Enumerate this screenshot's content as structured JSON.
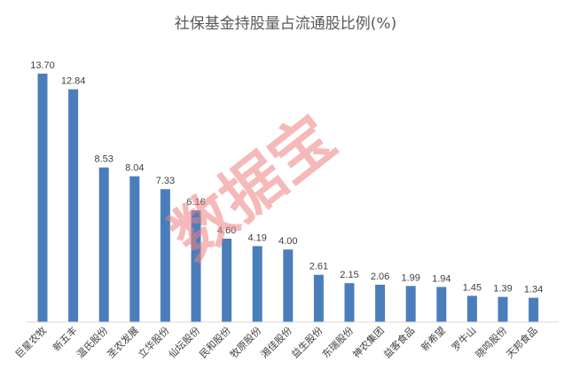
{
  "chart_data": {
    "type": "bar",
    "title": "社保基金持股量占流通股比例(%)",
    "categories": [
      "巨星农牧",
      "新五丰",
      "温氏股份",
      "圣农发展",
      "立华股份",
      "仙坛股份",
      "民和股份",
      "牧原股份",
      "湘佳股份",
      "益生股份",
      "东瑞股份",
      "神农集团",
      "益客食品",
      "新希望",
      "罗牛山",
      "晓鸣股份",
      "天邦食品"
    ],
    "values": [
      13.7,
      12.84,
      8.53,
      8.04,
      7.33,
      6.16,
      4.6,
      4.19,
      4.0,
      2.61,
      2.15,
      2.06,
      1.99,
      1.94,
      1.45,
      1.39,
      1.34
    ],
    "value_labels": [
      "13.70",
      "12.84",
      "8.53",
      "8.04",
      "7.33",
      "6.16",
      "4.60",
      "4.19",
      "4.00",
      "2.61",
      "2.15",
      "2.06",
      "1.99",
      "1.94",
      "1.45",
      "1.39",
      "1.34"
    ],
    "xlabel": "",
    "ylabel": "",
    "ylim": [
      0,
      13.7
    ],
    "grid": false,
    "legend": "none",
    "bar_color": "#4a7ebb"
  },
  "watermark": {
    "text": "数据宝",
    "color": "#f08080"
  }
}
